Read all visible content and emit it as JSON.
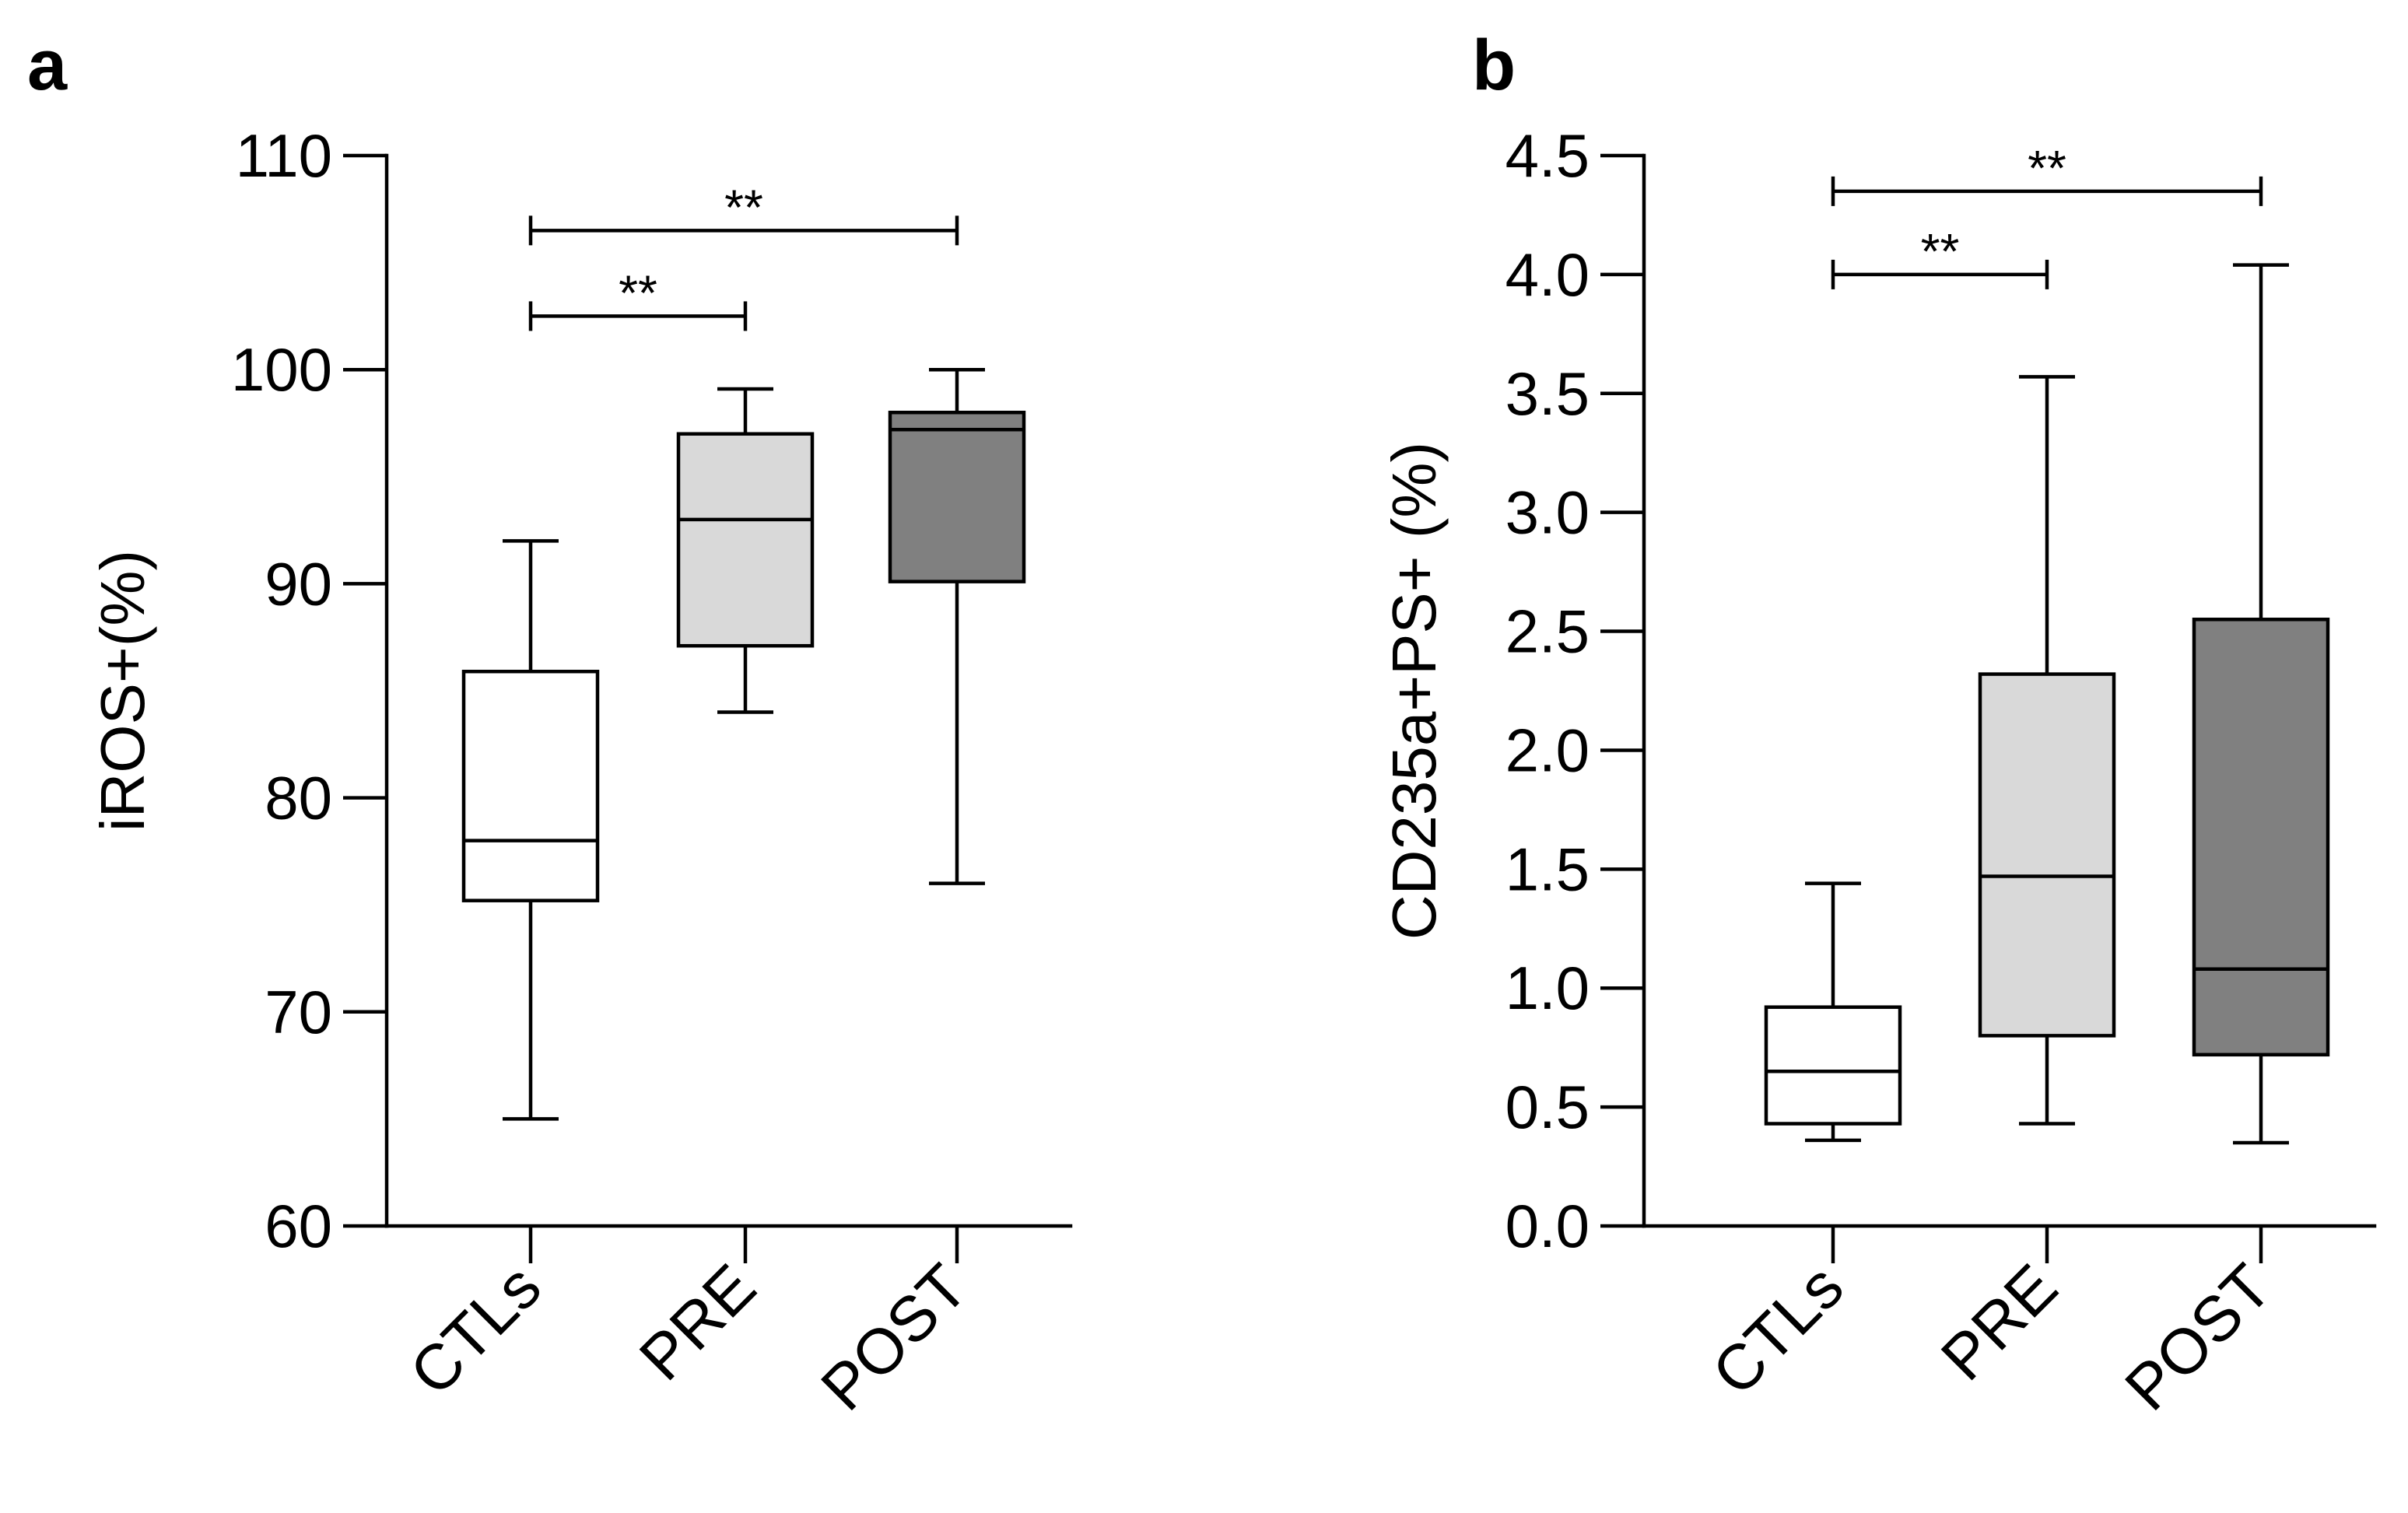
{
  "chart_data": [
    {
      "panel_label": "a",
      "type": "boxplot",
      "title": "",
      "xlabel": "",
      "ylabel": "iROS+(%)",
      "ylim": [
        60,
        110
      ],
      "yticks": [
        60,
        70,
        80,
        90,
        100,
        110
      ],
      "ytick_labels": [
        "60",
        "70",
        "80",
        "90",
        "100",
        "110"
      ],
      "categories": [
        "CTLs",
        "PRE",
        "POST"
      ],
      "boxes": [
        {
          "name": "CTLs",
          "min": 65,
          "q1": 75.2,
          "median": 78,
          "q3": 85.9,
          "max": 92,
          "fill": "#ffffff"
        },
        {
          "name": "PRE",
          "min": 84,
          "q1": 87.1,
          "median": 93,
          "q3": 97,
          "max": 99.1,
          "fill": "#d9d9d9"
        },
        {
          "name": "POST",
          "min": 76,
          "q1": 90.1,
          "median": 97.2,
          "q3": 98,
          "max": 100,
          "fill": "#808080"
        }
      ],
      "significance": [
        {
          "from": 0,
          "to": 1,
          "label": "**",
          "y": 102.5
        },
        {
          "from": 0,
          "to": 2,
          "label": "**",
          "y": 106.5
        }
      ]
    },
    {
      "panel_label": "b",
      "type": "boxplot",
      "title": "",
      "xlabel": "",
      "ylabel": "CD235a+PS+ (%)",
      "ylim": [
        0,
        4.5
      ],
      "yticks": [
        0,
        0.5,
        1,
        1.5,
        2,
        2.5,
        3,
        3.5,
        4,
        4.5
      ],
      "ytick_labels": [
        "0.0",
        "0.5",
        "1.0",
        "1.5",
        "2.0",
        "2.5",
        "3.0",
        "3.5",
        "4.0",
        "4.5"
      ],
      "categories": [
        "CTLs",
        "PRE",
        "POST"
      ],
      "boxes": [
        {
          "name": "CTLs",
          "min": 0.36,
          "q1": 0.43,
          "median": 0.65,
          "q3": 0.92,
          "max": 1.44,
          "fill": "#ffffff"
        },
        {
          "name": "PRE",
          "min": 0.43,
          "q1": 0.8,
          "median": 1.47,
          "q3": 2.32,
          "max": 3.57,
          "fill": "#d9d9d9"
        },
        {
          "name": "POST",
          "min": 0.35,
          "q1": 0.72,
          "median": 1.08,
          "q3": 2.55,
          "max": 4.04,
          "fill": "#808080"
        }
      ],
      "significance": [
        {
          "from": 0,
          "to": 1,
          "label": "**",
          "y": 4.0
        },
        {
          "from": 0,
          "to": 2,
          "label": "**",
          "y": 4.35
        }
      ]
    }
  ]
}
